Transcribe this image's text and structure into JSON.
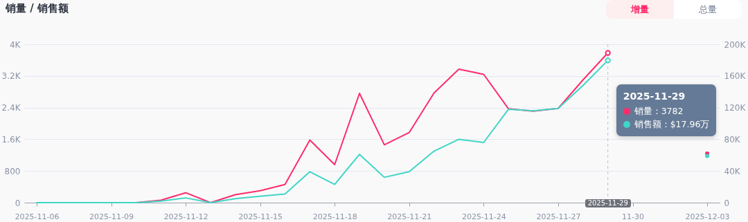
{
  "chart_data": {
    "type": "line",
    "title": "销量 / 销售额",
    "x": [
      "2025-11-06",
      "2025-11-07",
      "2025-11-08",
      "2025-11-09",
      "2025-11-10",
      "2025-11-11",
      "2025-11-12",
      "2025-11-13",
      "2025-11-14",
      "2025-11-15",
      "2025-11-16",
      "2025-11-17",
      "2025-11-18",
      "2025-11-19",
      "2025-11-20",
      "2025-11-21",
      "2025-11-22",
      "2025-11-23",
      "2025-11-24",
      "2025-11-25",
      "2025-11-26",
      "2025-11-27",
      "2025-11-28",
      "2025-11-29",
      "2025-11-30",
      "2025-12-01",
      "2025-12-02",
      "2025-12-03"
    ],
    "xlim": [
      "2025-11-05T12:00",
      "2025-12-03T12:00"
    ],
    "xticks": [
      "2025-11-06",
      "2025-11-09",
      "2025-11-12",
      "2025-11-15",
      "2025-11-18",
      "2025-11-21",
      "2025-11-24",
      "2025-11-27",
      {
        "value": "2025-11-30",
        "label": "11-30"
      },
      "2025-12-03"
    ],
    "series": [
      {
        "color": "#fe2c6a",
        "values": [
          null,
          null,
          null,
          0,
          0,
          60,
          250,
          0,
          200,
          300,
          460,
          1580,
          960,
          2760,
          1460,
          1770,
          2770,
          3370,
          3240,
          2370,
          2310,
          2380,
          3100,
          3782,
          null,
          null,
          null,
          1240
        ]
      },
      {
        "color": "#3fd6c6",
        "axis": "y2",
        "values": [
          0,
          0,
          0,
          0,
          0,
          2000,
          6000,
          0,
          5000,
          8000,
          11000,
          39000,
          23000,
          61000,
          32000,
          39000,
          65000,
          80000,
          76000,
          118000,
          116000,
          119000,
          148000,
          179600,
          null,
          null,
          null,
          59000
        ]
      }
    ],
    "ylim": [
      0,
      4000
    ],
    "yticks": [
      0,
      800,
      {
        "value": 1600,
        "label": "1.6K"
      },
      {
        "value": 2400,
        "label": "2.4K"
      },
      {
        "value": 3200,
        "label": "3.2K"
      },
      {
        "value": 4000,
        "label": "4K"
      }
    ],
    "y2lim": [
      0,
      200000
    ],
    "y2ticks": [
      0,
      {
        "value": 40000,
        "label": "40K"
      },
      {
        "value": 80000,
        "label": "80K"
      },
      {
        "value": 120000,
        "label": "120K"
      },
      {
        "value": 160000,
        "label": "160K"
      },
      {
        "value": 200000,
        "label": "200K"
      }
    ],
    "grid": "y",
    "ref_lines": [
      {
        "axis": "x",
        "value": "2025-11-29",
        "label": "2025-11-29",
        "line_style": "dashed",
        "color": "#b8c0cc"
      }
    ],
    "annotations": [
      "增量",
      "总量",
      "销量：3782",
      "销售额：$17.96万"
    ]
  }
}
